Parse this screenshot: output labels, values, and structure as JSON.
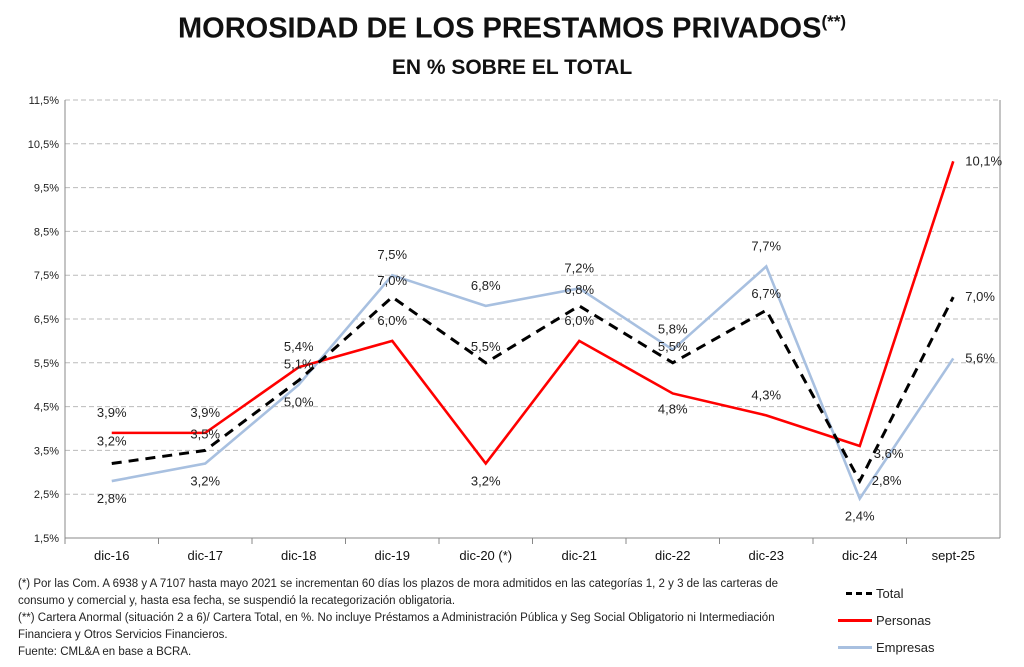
{
  "chart_data": {
    "type": "line",
    "title": "MOROSIDAD DE LOS PRESTAMOS PRIVADOS",
    "title_suffix": "(**)",
    "subtitle": "EN % SOBRE EL TOTAL",
    "categories": [
      "dic-16",
      "dic-17",
      "dic-18",
      "dic-19",
      "dic-20 (*)",
      "dic-21",
      "dic-22",
      "dic-23",
      "dic-24",
      "sept-25"
    ],
    "ylim": [
      1.5,
      11.5
    ],
    "yticks": [
      "1,5%",
      "2,5%",
      "3,5%",
      "4,5%",
      "5,5%",
      "6,5%",
      "7,5%",
      "8,5%",
      "9,5%",
      "10,5%",
      "11,5%"
    ],
    "grid": true,
    "legend_position": "bottom-right",
    "series": [
      {
        "name": "Total",
        "color": "#000000",
        "style": "dashed",
        "values": [
          3.2,
          3.5,
          5.1,
          7.0,
          5.5,
          6.8,
          5.5,
          6.7,
          2.8,
          7.0
        ],
        "labels": [
          "3,2%",
          "3,5%",
          "5,1%",
          "7,0%",
          "5,5%",
          "6,8%",
          "5,5%",
          "6,7%",
          "2,8%",
          "7,0%"
        ]
      },
      {
        "name": "Personas",
        "color": "#ff0000",
        "style": "solid",
        "values": [
          3.9,
          3.9,
          5.4,
          6.0,
          3.2,
          6.0,
          4.8,
          4.3,
          3.6,
          10.1
        ],
        "labels": [
          "3,9%",
          "3,9%",
          "5,4%",
          "6,0%",
          "3,2%",
          "6,0%",
          "4,8%",
          "4,3%",
          "3,6%",
          "10,1%"
        ]
      },
      {
        "name": "Empresas",
        "color": "#a8c0e0",
        "style": "solid",
        "values": [
          2.8,
          3.2,
          5.0,
          7.5,
          6.8,
          7.2,
          5.8,
          7.7,
          2.4,
          5.6
        ],
        "labels": [
          "2,8%",
          "3,2%",
          "5,0%",
          "7,5%",
          "6,8%",
          "7,2%",
          "5,8%",
          "7,7%",
          "2,4%",
          "5,6%"
        ]
      }
    ]
  },
  "footnotes": [
    "(*) Por las Com. A 6938 y A 7107 hasta mayo 2021 se incrementan 60 días los plazos de mora admitidos en las categorías 1, 2 y 3 de las carteras de consumo y comercial y, hasta esa fecha, se suspendió la recategorización obligatoria.",
    "(**) Cartera Anormal (situación 2 a 6)/ Cartera Total, en %. No incluye Préstamos a Administración Pública y Seg Social Obligatorio ni Intermediación Financiera y Otros Servicios Financieros.",
    "Fuente: CML&A en base a BCRA."
  ]
}
